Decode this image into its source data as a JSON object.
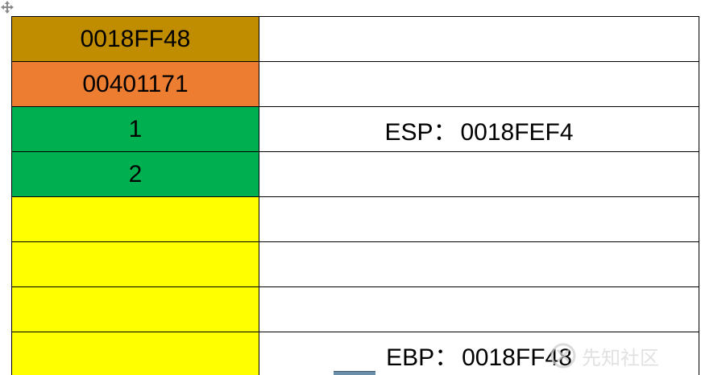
{
  "colors": {
    "frame_ebp": "#C08C00",
    "return_address": "#ED7D31",
    "argument": "#00B050",
    "local_space": "#FFFF00",
    "border": "#000000"
  },
  "rows": [
    {
      "value": "0018FF48",
      "color": "#C08C00",
      "register": "",
      "register_value": ""
    },
    {
      "value": "00401171",
      "color": "#ED7D31",
      "register": "",
      "register_value": ""
    },
    {
      "value": "1",
      "color": "#00B050",
      "register": "ESP",
      "register_value": "0018FEF4"
    },
    {
      "value": "2",
      "color": "#00B050",
      "register": "",
      "register_value": ""
    },
    {
      "value": "",
      "color": "#FFFF00",
      "register": "",
      "register_value": ""
    },
    {
      "value": "",
      "color": "#FFFF00",
      "register": "",
      "register_value": ""
    },
    {
      "value": "",
      "color": "#FFFF00",
      "register": "",
      "register_value": ""
    },
    {
      "value": "",
      "color": "#FFFF00",
      "register": "EBP",
      "register_value": "0018FF48"
    }
  ],
  "separator": "：",
  "watermark": {
    "text": "先知社区",
    "icon": "xianzhi-logo-icon"
  },
  "icons": {
    "move_handle": "move-handle-icon"
  }
}
